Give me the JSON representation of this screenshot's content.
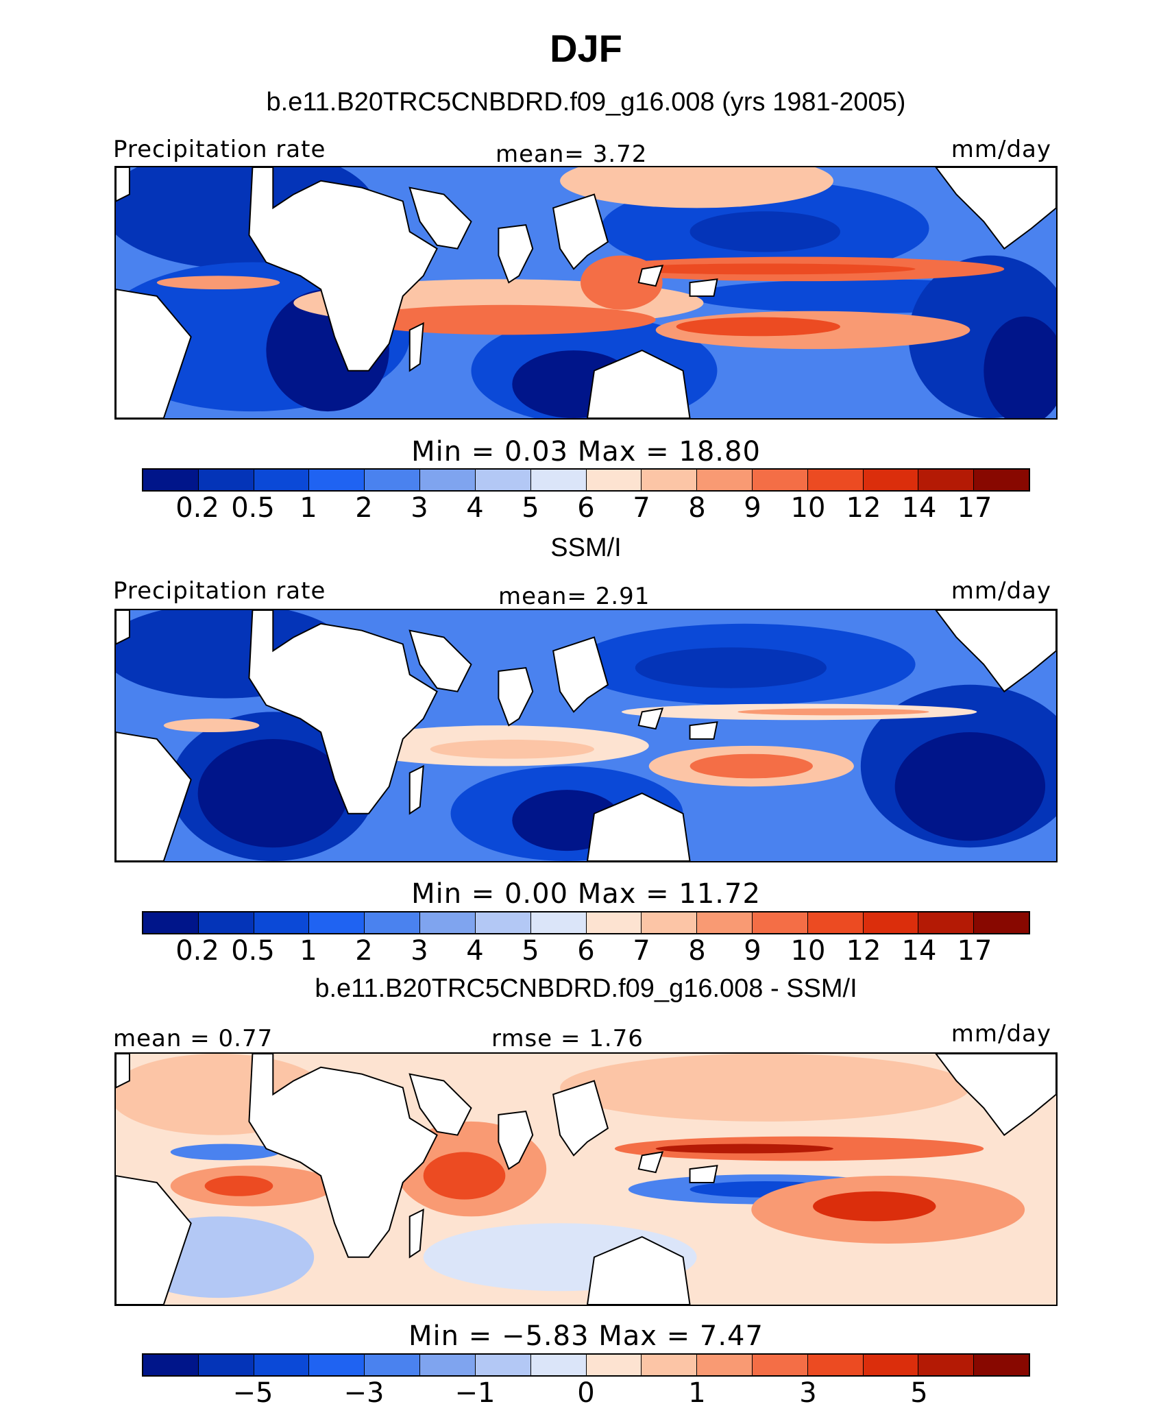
{
  "title": "DJF",
  "panels": [
    {
      "heading": "b.e11.B20TRC5CNBDRD.f09_g16.008 (yrs 1981-2005)",
      "left_label": "Precipitation rate",
      "center_label": "mean=    3.72",
      "right_label": "mm/day",
      "minmax": "Min  =   0.03  Max  =   18.80",
      "kind": "model",
      "colorbar": {
        "colors": [
          "#00158a",
          "#0434b8",
          "#0b49d7",
          "#1f63f2",
          "#4a82ef",
          "#7fa4ef",
          "#b3c8f5",
          "#dbe5f9",
          "#fde3d1",
          "#fcc5a6",
          "#f99a73",
          "#f46e46",
          "#ec4b22",
          "#db2e0c",
          "#b41a05",
          "#880800"
        ],
        "ticks": [
          "0.2",
          "0.5",
          "1",
          "2",
          "3",
          "4",
          "5",
          "6",
          "7",
          "8",
          "9",
          "10",
          "12",
          "14",
          "17"
        ]
      }
    },
    {
      "heading": "SSM/I",
      "left_label": "Precipitation rate",
      "center_label": "mean=    2.91",
      "right_label": "mm/day",
      "minmax": "Min  =   0.00  Max  =   11.72",
      "kind": "obs",
      "colorbar": {
        "colors": [
          "#00158a",
          "#0434b8",
          "#0b49d7",
          "#1f63f2",
          "#4a82ef",
          "#7fa4ef",
          "#b3c8f5",
          "#dbe5f9",
          "#fde3d1",
          "#fcc5a6",
          "#f99a73",
          "#f46e46",
          "#ec4b22",
          "#db2e0c",
          "#b41a05",
          "#880800"
        ],
        "ticks": [
          "0.2",
          "0.5",
          "1",
          "2",
          "3",
          "4",
          "5",
          "6",
          "7",
          "8",
          "9",
          "10",
          "12",
          "14",
          "17"
        ]
      }
    },
    {
      "heading": "b.e11.B20TRC5CNBDRD.f09_g16.008 - SSM/I",
      "left_label": "mean  =    0.77",
      "center_label": "rmse  =    1.76",
      "right_label": "mm/day",
      "minmax": "Min  =   −5.83  Max  =    7.47",
      "kind": "diff",
      "colorbar": {
        "colors": [
          "#00158a",
          "#0434b8",
          "#0b49d7",
          "#1f63f2",
          "#4a82ef",
          "#7fa4ef",
          "#b3c8f5",
          "#dbe5f9",
          "#fde3d1",
          "#fcc5a6",
          "#f99a73",
          "#f46e46",
          "#ec4b22",
          "#db2e0c",
          "#b41a05",
          "#880800"
        ],
        "ticks": [
          "−5",
          "−3",
          "−1",
          "0",
          "1",
          "3",
          "5"
        ],
        "tick_positions": [
          2,
          4,
          6,
          8,
          10,
          12,
          14
        ]
      }
    }
  ]
}
